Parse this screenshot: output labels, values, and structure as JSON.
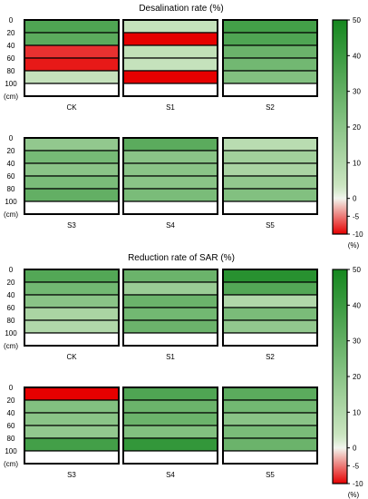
{
  "chart_data": [
    {
      "type": "heatmap",
      "title": "Desalination rate (%)",
      "depth_labels": [
        "0",
        "20",
        "40",
        "60",
        "80",
        "100",
        "(cm)"
      ],
      "colorbar": {
        "ticks": [
          "50",
          "40",
          "30",
          "20",
          "10",
          "0",
          "-5",
          "-10"
        ],
        "unit": "(%)",
        "range": [
          -10,
          50
        ]
      },
      "panels": [
        {
          "name": "CK",
          "values": [
            35,
            32,
            -8,
            -9,
            5,
            null
          ]
        },
        {
          "name": "S1",
          "values": [
            5,
            -10,
            6,
            5,
            -10,
            null
          ]
        },
        {
          "name": "S2",
          "values": [
            38,
            35,
            28,
            26,
            22,
            null
          ]
        },
        {
          "name": "S3",
          "values": [
            18,
            25,
            20,
            24,
            30,
            null
          ]
        },
        {
          "name": "S4",
          "values": [
            32,
            20,
            20,
            20,
            24,
            null
          ]
        },
        {
          "name": "S5",
          "values": [
            8,
            14,
            12,
            18,
            22,
            null
          ]
        }
      ]
    },
    {
      "type": "heatmap",
      "title": "Reduction rate of SAR (%)",
      "depth_labels": [
        "0",
        "20",
        "40",
        "60",
        "80",
        "100",
        "(cm)"
      ],
      "colorbar": {
        "ticks": [
          "50",
          "40",
          "30",
          "20",
          "10",
          "0",
          "-5",
          "-10"
        ],
        "unit": "(%)",
        "range": [
          -10,
          50
        ]
      },
      "panels": [
        {
          "name": "CK",
          "values": [
            34,
            26,
            20,
            12,
            10,
            null
          ]
        },
        {
          "name": "S1",
          "values": [
            28,
            16,
            28,
            26,
            28,
            null
          ]
        },
        {
          "name": "S2",
          "values": [
            45,
            34,
            10,
            24,
            18,
            null
          ]
        },
        {
          "name": "S3",
          "values": [
            -10,
            22,
            20,
            18,
            38,
            null
          ]
        },
        {
          "name": "S4",
          "values": [
            35,
            28,
            28,
            22,
            42,
            null
          ]
        },
        {
          "name": "S5",
          "values": [
            32,
            26,
            20,
            24,
            28,
            null
          ]
        }
      ]
    }
  ]
}
